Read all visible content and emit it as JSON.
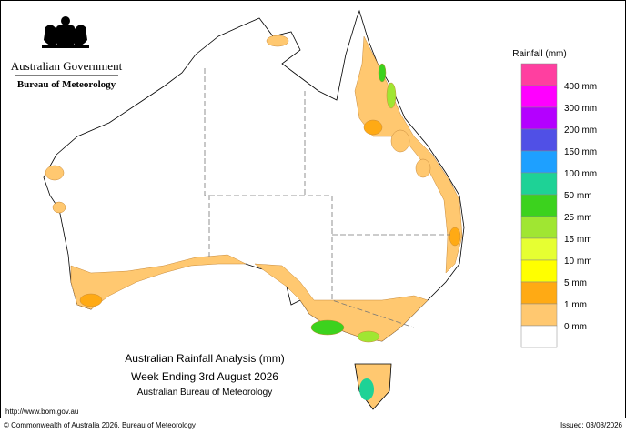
{
  "header": {
    "agency": "Australian Government",
    "bureau": "Bureau of Meteorology"
  },
  "map": {
    "title_lines": [
      "Australian Rainfall Analysis (mm)",
      "Week Ending 3rd August 2026",
      "Australian Bureau of Meteorology"
    ]
  },
  "legend": {
    "title": "Rainfall (mm)",
    "colors": [
      "#ff3fa0",
      "#ff00ff",
      "#b400ff",
      "#5050e6",
      "#1ea0ff",
      "#1ed296",
      "#3cd21e",
      "#a0e632",
      "#e6ff32",
      "#ffff00",
      "#ffaa14",
      "#ffc870",
      "#ffffff"
    ],
    "labels": [
      "400 mm",
      "300 mm",
      "200 mm",
      "150 mm",
      "100 mm",
      "50 mm",
      "25 mm",
      "15 mm",
      "10 mm",
      "5 mm",
      "1 mm",
      "0 mm"
    ]
  },
  "footer": {
    "url": "http://www.bom.gov.au",
    "copyright": "© Commonwealth of Australia 2026, Bureau of Meteorology",
    "issued": "Issued: 03/08/2026"
  }
}
